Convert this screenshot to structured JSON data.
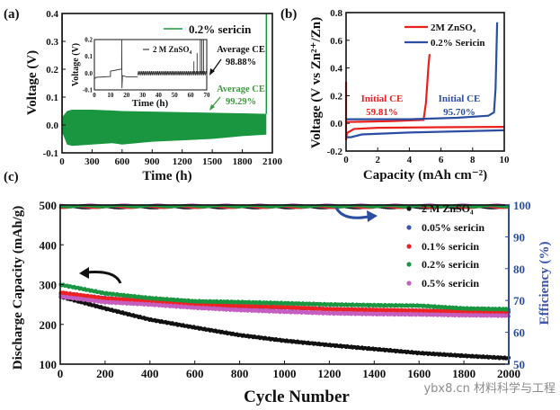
{
  "chart_data": [
    {
      "panel": "(a)",
      "type": "line",
      "xlabel": "Time (h)",
      "ylabel": "Voltage (V)",
      "xlim": [
        0,
        2100
      ],
      "ylim": [
        -0.1,
        0.4
      ],
      "xticks": [
        0,
        300,
        600,
        900,
        1200,
        1500,
        1800,
        2100
      ],
      "yticks": [
        -0.1,
        0.0,
        0.1,
        0.2,
        0.3,
        0.4
      ],
      "ytick_labels": [
        "-0.1",
        "0.0",
        "0.1",
        "0.2",
        "0.3",
        "0.4"
      ],
      "legend": "0.2% sericin",
      "color": "#1a9641",
      "series": {
        "name": "0.2% sericin",
        "time": [
          5,
          50,
          100,
          300,
          500,
          600,
          900,
          1200,
          1500,
          1800,
          2040
        ],
        "upper": [
          0.03,
          0.05,
          0.055,
          0.055,
          0.052,
          0.05,
          0.048,
          0.046,
          0.044,
          0.042,
          0.04
        ],
        "lower": [
          -0.03,
          -0.07,
          -0.075,
          -0.07,
          -0.065,
          -0.07,
          -0.06,
          -0.055,
          -0.05,
          -0.04,
          -0.035
        ],
        "end_spike_time": 2040,
        "end_spike_voltage": 0.4
      },
      "annotation": {
        "label": "Average CE",
        "value": "99.29%"
      },
      "inset": {
        "xlabel": "Time (h)",
        "ylabel": "Voltage (V)",
        "xlim": [
          0,
          70
        ],
        "ylim": [
          -0.1,
          0.2
        ],
        "xticks": [
          0,
          10,
          20,
          30,
          40,
          50,
          60,
          70
        ],
        "yticks": [
          -0.1,
          0.0,
          0.1,
          0.2
        ],
        "ytick_labels": [
          "-0.1",
          "0.0",
          "0.1",
          "0.2"
        ],
        "legend": "2 M ZnSO₄",
        "color": "#333333",
        "points": [
          [
            0,
            -0.035
          ],
          [
            1,
            -0.025
          ],
          [
            10,
            -0.02
          ],
          [
            10,
            0.012
          ],
          [
            12,
            0.015
          ],
          [
            17,
            0.025
          ],
          [
            17,
            0.2
          ],
          [
            17.2,
            -0.09
          ],
          [
            17.5,
            -0.015
          ],
          [
            20,
            -0.022
          ],
          [
            27,
            -0.022
          ]
        ],
        "cycling": {
          "start": 27,
          "end": 70,
          "period": 1,
          "amplitude": 0.012
        },
        "spikes": [
          [
            62,
            0.07
          ],
          [
            64,
            0.12
          ],
          [
            66,
            0.2
          ],
          [
            67,
            0.2
          ],
          [
            68,
            0.2
          ]
        ],
        "annotation": {
          "label": "Average CE",
          "value": "98.88%"
        }
      }
    },
    {
      "panel": "(b)",
      "type": "line",
      "xlabel": "Capacity (mAh cm⁻²)",
      "ylabel": "Voltage (V vs Zn²⁺/Zn)",
      "xlim": [
        0,
        10
      ],
      "ylim": [
        -0.2,
        0.8
      ],
      "xticks": [
        0,
        2,
        4,
        6,
        8,
        10
      ],
      "yticks": [
        -0.2,
        0.0,
        0.2,
        0.4,
        0.6,
        0.8
      ],
      "ytick_labels": [
        "-0.2",
        "0.0",
        "0.2",
        "0.4",
        "0.6",
        "0.8"
      ],
      "series": [
        {
          "name": "2M ZnSO₄",
          "color": "#e8211d",
          "plating": [
            [
              0,
              0.3
            ],
            [
              0,
              -0.12
            ],
            [
              0.05,
              -0.07
            ],
            [
              0.5,
              -0.04
            ],
            [
              2,
              -0.032
            ],
            [
              6,
              -0.028
            ],
            [
              10,
              -0.025
            ]
          ],
          "stripping": [
            [
              0,
              0.01
            ],
            [
              1,
              0.012
            ],
            [
              3,
              0.016
            ],
            [
              4.9,
              0.025
            ],
            [
              5.05,
              0.15
            ],
            [
              5.2,
              0.4
            ],
            [
              5.28,
              0.5
            ]
          ],
          "initial_ce_label": "Initial CE",
          "initial_ce": "59.81%"
        },
        {
          "name": "0.2% Sericin",
          "color": "#2b4ea2",
          "plating": [
            [
              0,
              -0.1
            ],
            [
              0.3,
              -0.1
            ],
            [
              1,
              -0.08
            ],
            [
              4,
              -0.066
            ],
            [
              7,
              -0.058
            ],
            [
              10,
              -0.05
            ]
          ],
          "stripping": [
            [
              0,
              0.03
            ],
            [
              4,
              0.03
            ],
            [
              7,
              0.04
            ],
            [
              9,
              0.055
            ],
            [
              9.35,
              0.08
            ],
            [
              9.45,
              0.25
            ],
            [
              9.55,
              0.73
            ]
          ],
          "initial_ce_label": "Initial CE",
          "initial_ce": "95.70%"
        }
      ]
    },
    {
      "panel": "(c)",
      "type": "scatter",
      "xlabel": "Cycle Number",
      "ylabel": "Discharge Capacity (mAh/g)",
      "y2label": "Efficiency (%)",
      "xlim": [
        0,
        2000
      ],
      "ylim": [
        100,
        500
      ],
      "y2lim": [
        50,
        102
      ],
      "xticks": [
        0,
        200,
        400,
        600,
        800,
        1000,
        1200,
        1400,
        1600,
        1800,
        2000
      ],
      "yticks": [
        100,
        200,
        300,
        400,
        500
      ],
      "y2ticks": [
        50,
        60,
        70,
        80,
        90,
        100
      ],
      "cycles": [
        0,
        200,
        400,
        600,
        800,
        1000,
        1200,
        1400,
        1600,
        1800,
        2000
      ],
      "series": [
        {
          "name": "2 M ZnSO₄",
          "color": "#111111",
          "capacity": [
            270,
            240,
            212,
            192,
            173,
            159,
            148,
            138,
            128,
            121,
            115
          ],
          "efficiency": 99.3
        },
        {
          "name": "0.05% sericin",
          "color": "#3a55b4",
          "capacity": [
            278,
            266,
            257,
            249,
            245,
            242,
            238,
            236,
            234,
            232,
            230
          ],
          "efficiency": 99.5
        },
        {
          "name": "0.1% sericin",
          "color": "#ee2222",
          "capacity": [
            280,
            265,
            258,
            250,
            246,
            243,
            238,
            236,
            234,
            232,
            230
          ],
          "efficiency": 99.4
        },
        {
          "name": "0.2% sericin",
          "color": "#1a9641",
          "capacity": [
            300,
            278,
            266,
            258,
            256,
            253,
            250,
            248,
            247,
            240,
            238
          ],
          "efficiency": 99.6
        },
        {
          "name": "0.5% sericin",
          "color": "#c45ec0",
          "capacity": [
            270,
            256,
            250,
            242,
            236,
            232,
            228,
            226,
            225,
            223,
            222
          ],
          "efficiency": 99.8
        }
      ],
      "legend_position": "right"
    }
  ],
  "watermark": "ybx8.cn 材料科学与工程"
}
